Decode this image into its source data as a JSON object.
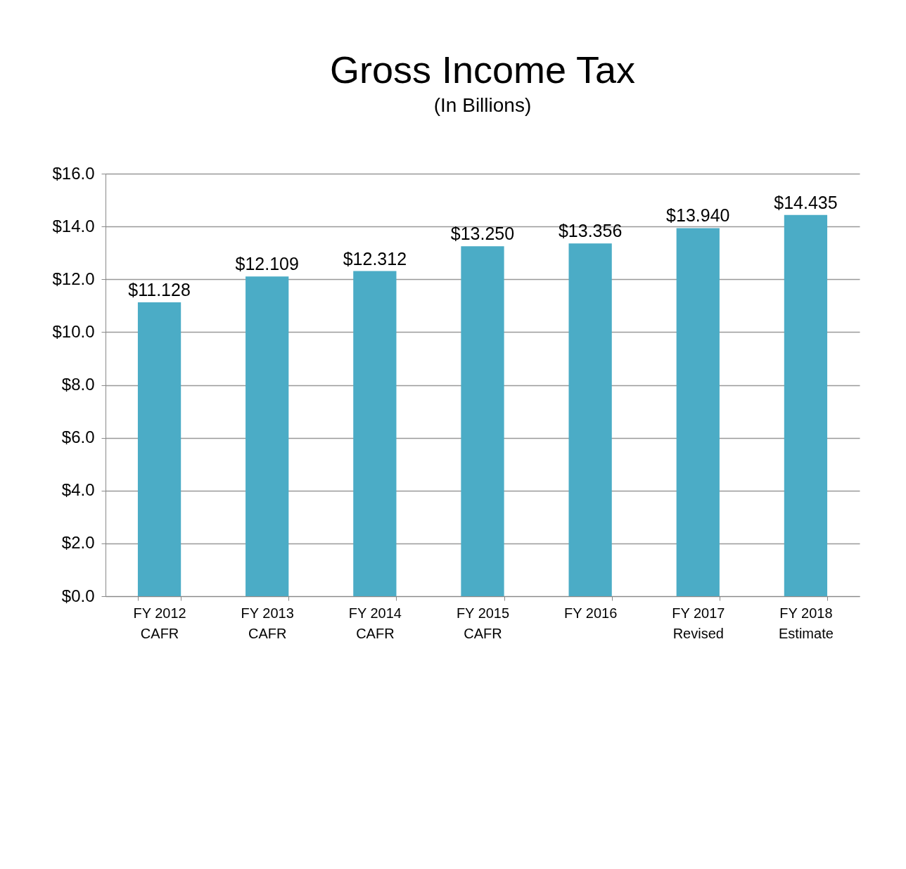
{
  "chart_data": {
    "type": "bar",
    "title": "Gross Income Tax",
    "subtitle": "(In Billions)",
    "categories": [
      "FY 2012\nCAFR",
      "FY 2013\nCAFR",
      "FY 2014\nCAFR",
      "FY 2015\nCAFR",
      "FY 2016",
      "FY 2017\nRevised",
      "FY 2018\nEstimate"
    ],
    "values": [
      11.128,
      12.109,
      12.312,
      13.25,
      13.356,
      13.94,
      14.435
    ],
    "value_labels": [
      "$11.128",
      "$12.109",
      "$12.312",
      "$13.250",
      "$13.356",
      "$13.940",
      "$14.435"
    ],
    "color": "#4bacc6",
    "ylim": [
      0,
      16
    ],
    "yticks": [
      {
        "value": 0,
        "label": "$0.0"
      },
      {
        "value": 2,
        "label": "$2.0"
      },
      {
        "value": 4,
        "label": "$4.0"
      },
      {
        "value": 6,
        "label": "$6.0"
      },
      {
        "value": 8,
        "label": "$8.0"
      },
      {
        "value": 10,
        "label": "$10.0"
      },
      {
        "value": 12,
        "label": "$12.0"
      },
      {
        "value": 14,
        "label": "$14.0"
      },
      {
        "value": 16,
        "label": "$16.0"
      }
    ],
    "grid": "y"
  }
}
